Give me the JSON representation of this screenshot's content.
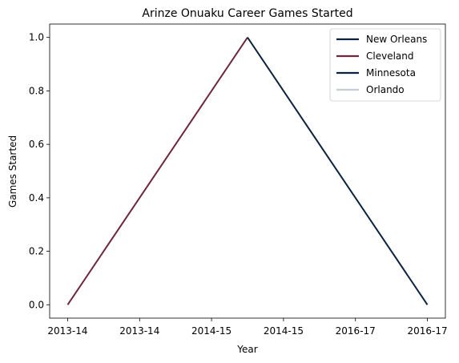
{
  "chart_data": {
    "type": "line",
    "title": "Arinze Onuaku Career Games Started",
    "xlabel": "Year",
    "ylabel": "Games Started",
    "x_ticks": [
      "2013-14",
      "2013-14",
      "2014-15",
      "2014-15",
      "2016-17",
      "2016-17"
    ],
    "ylim": [
      -0.05,
      1.05
    ],
    "y_ticks": [
      "0.0",
      "0.2",
      "0.4",
      "0.6",
      "0.8",
      "1.0"
    ],
    "legend_position": "top-right",
    "series": [
      {
        "name": "New Orleans",
        "color": "#0C2340",
        "points": []
      },
      {
        "name": "Cleveland",
        "color": "#6F263D",
        "points": [
          [
            0,
            0
          ],
          [
            2.5,
            1
          ]
        ]
      },
      {
        "name": "Minnesota",
        "color": "#0C2340",
        "points": [
          [
            2.5,
            1
          ],
          [
            5,
            0
          ]
        ]
      },
      {
        "name": "Orlando",
        "color": "#C4CED4",
        "points": []
      }
    ]
  }
}
